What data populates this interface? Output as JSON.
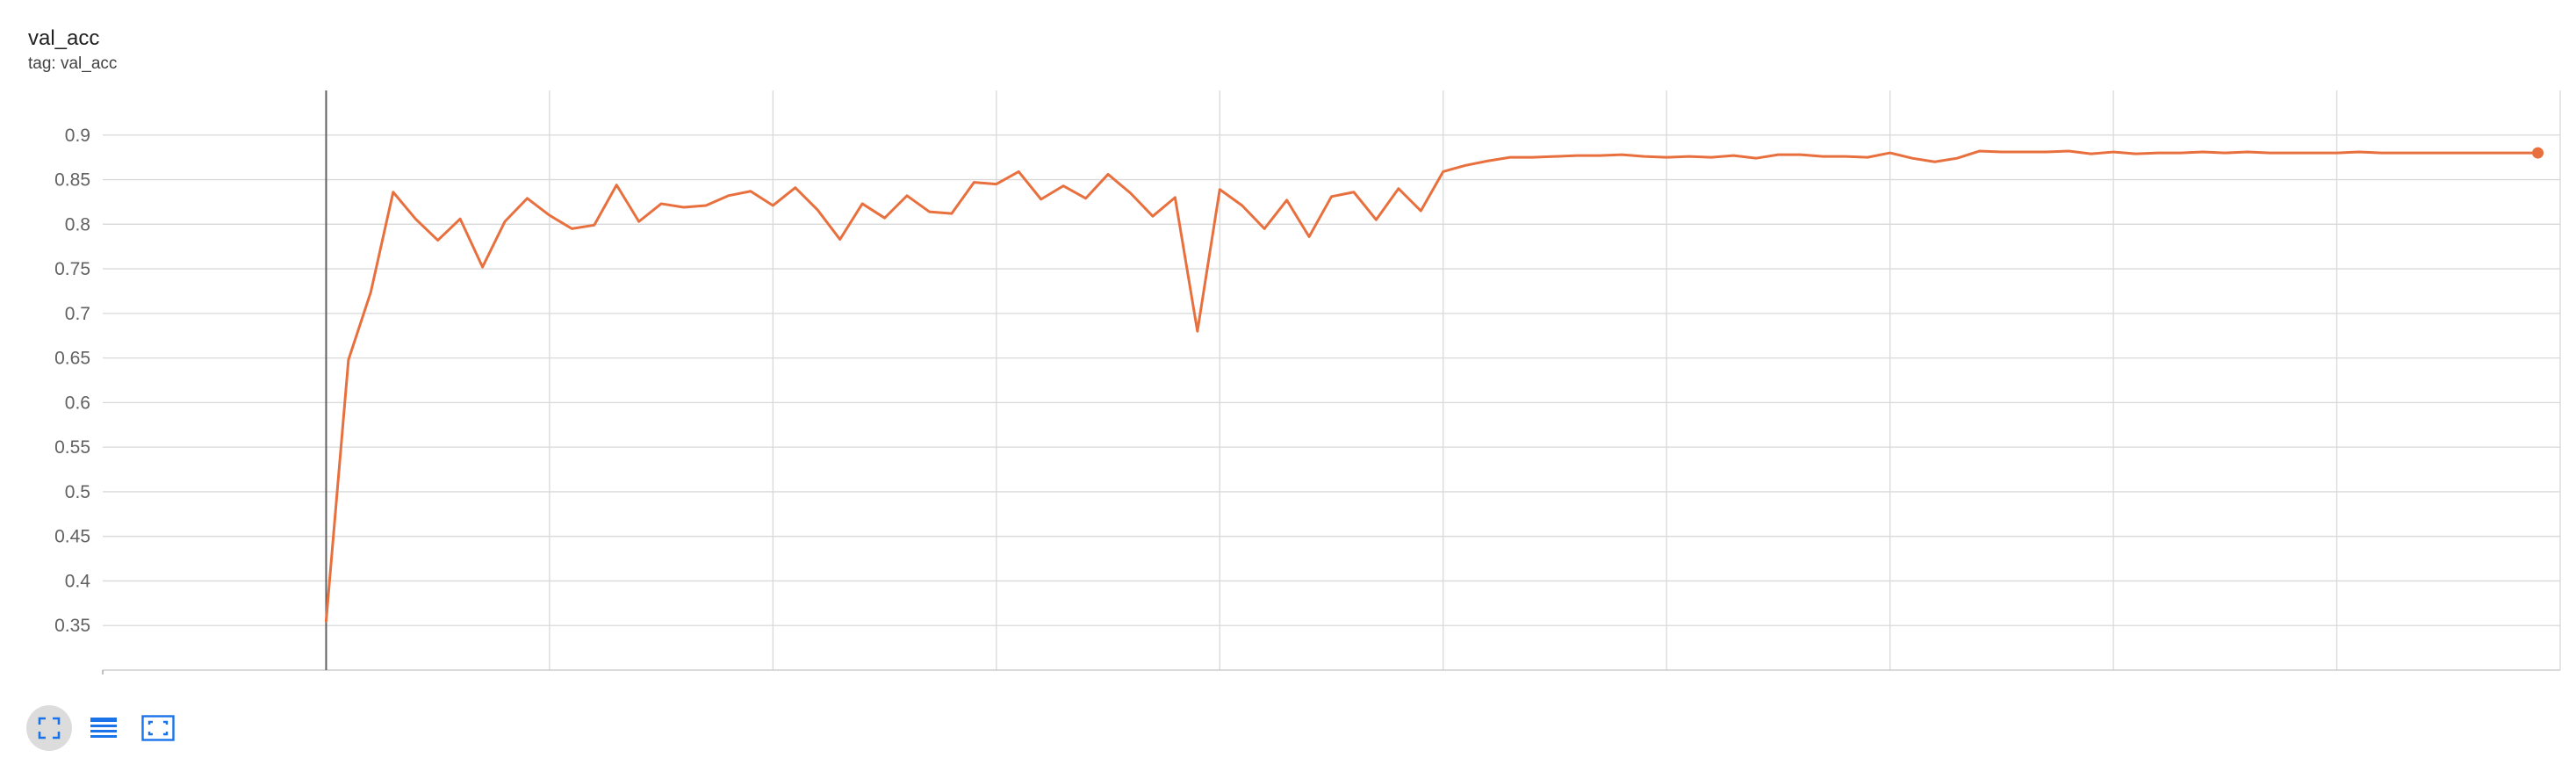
{
  "card": {
    "title": "val_acc",
    "tag": "tag: val_acc"
  },
  "toolbar": [
    {
      "name": "fit-domain-icon",
      "active": true
    },
    {
      "name": "data-table-icon",
      "active": false
    },
    {
      "name": "toggle-y-axis-icon",
      "active": false
    }
  ],
  "colors": {
    "series": "#e8703e",
    "grid": "#d9d9d9",
    "zero_line": "#616161",
    "icon": "#1a73e8"
  },
  "chart_data": {
    "type": "line",
    "xlim": [
      -10,
      100
    ],
    "ylim": [
      0.3,
      0.95
    ],
    "xticks": [
      0,
      10,
      20,
      30,
      40,
      50,
      60,
      70,
      80,
      90,
      100
    ],
    "yticks": [
      0.35,
      0.4,
      0.45,
      0.5,
      0.55,
      0.6,
      0.65,
      0.7,
      0.75,
      0.8,
      0.85,
      0.9
    ],
    "grid": true,
    "series": [
      {
        "x": [
          0,
          1,
          2,
          3,
          4,
          5,
          6,
          7,
          8,
          9,
          10,
          11,
          12,
          13,
          14,
          15,
          16,
          17,
          18,
          19,
          20,
          21,
          22,
          23,
          24,
          25,
          26,
          27,
          28,
          29,
          30,
          31,
          32,
          33,
          34,
          35,
          36,
          37,
          38,
          39,
          40,
          41,
          42,
          43,
          44,
          45,
          46,
          47,
          48,
          49,
          50,
          51,
          52,
          53,
          54,
          55,
          56,
          57,
          58,
          59,
          60,
          61,
          62,
          63,
          64,
          65,
          66,
          67,
          68,
          69,
          70,
          71,
          72,
          73,
          74,
          75,
          76,
          77,
          78,
          79,
          80,
          81,
          82,
          83,
          84,
          85,
          86,
          87,
          88,
          89,
          90,
          91,
          92,
          93,
          94,
          95,
          96,
          97,
          98,
          99
        ],
        "values": [
          0.355,
          0.648,
          0.724,
          0.836,
          0.806,
          0.782,
          0.806,
          0.752,
          0.803,
          0.829,
          0.81,
          0.795,
          0.799,
          0.844,
          0.803,
          0.823,
          0.819,
          0.821,
          0.832,
          0.837,
          0.821,
          0.841,
          0.816,
          0.783,
          0.823,
          0.807,
          0.832,
          0.814,
          0.812,
          0.847,
          0.845,
          0.859,
          0.828,
          0.843,
          0.829,
          0.856,
          0.835,
          0.809,
          0.83,
          0.68,
          0.839,
          0.821,
          0.795,
          0.827,
          0.786,
          0.831,
          0.836,
          0.805,
          0.84,
          0.815,
          0.859,
          0.866,
          0.871,
          0.875,
          0.875,
          0.876,
          0.877,
          0.877,
          0.878,
          0.876,
          0.875,
          0.876,
          0.875,
          0.877,
          0.874,
          0.878,
          0.878,
          0.876,
          0.876,
          0.875,
          0.88,
          0.874,
          0.87,
          0.874,
          0.882,
          0.881,
          0.881,
          0.881,
          0.882,
          0.879,
          0.881,
          0.879,
          0.88,
          0.88,
          0.881,
          0.88,
          0.881,
          0.88,
          0.88,
          0.88,
          0.88,
          0.881,
          0.88,
          0.88,
          0.88,
          0.88,
          0.88,
          0.88,
          0.88,
          0.88
        ]
      }
    ]
  }
}
